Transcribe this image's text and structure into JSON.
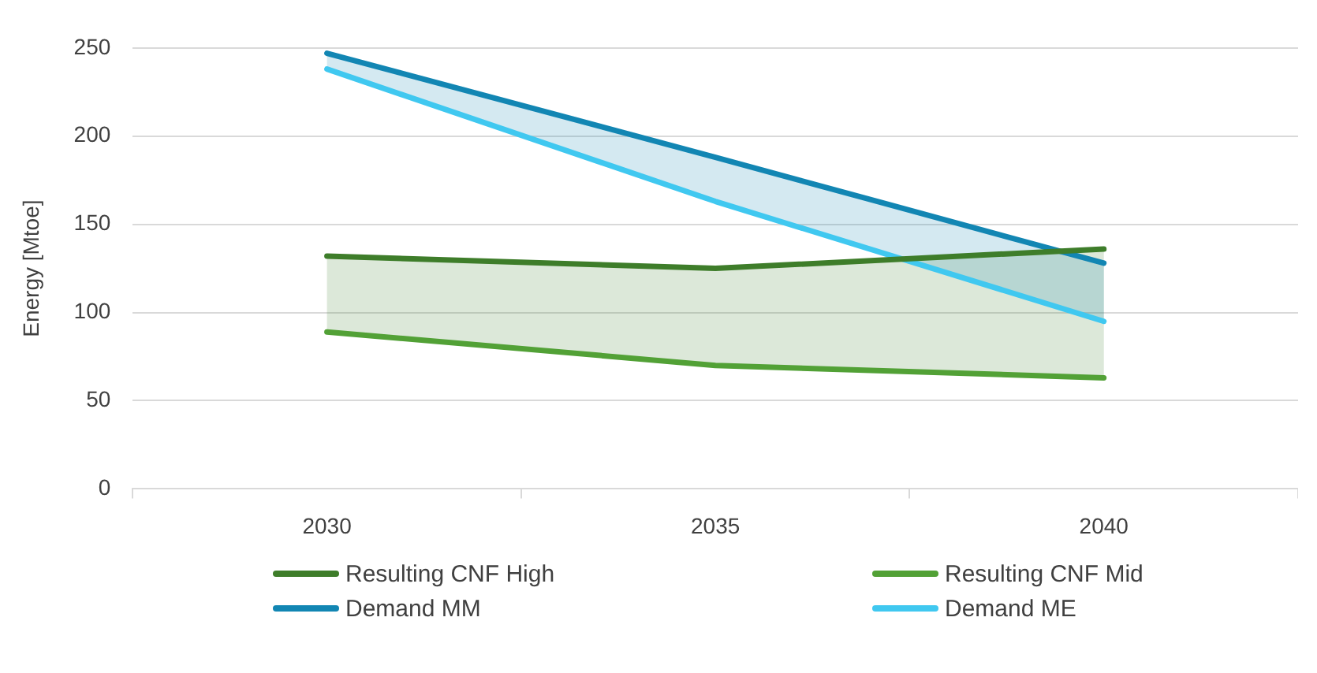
{
  "chart_data": {
    "type": "line",
    "ylabel": "Energy [Mtoe]",
    "categories": [
      "2030",
      "2035",
      "2040"
    ],
    "series": [
      {
        "name": "Resulting CNF High",
        "color": "#3e7d2a",
        "values": [
          132,
          125,
          136
        ],
        "lower": [
          89,
          70,
          63
        ],
        "upper": [
          132,
          125,
          136
        ]
      },
      {
        "name": "Resulting CNF Mid",
        "color": "#52a136",
        "values": [
          89,
          70,
          63
        ]
      },
      {
        "name": "Demand MM",
        "color": "#1286b3",
        "values": [
          247,
          188,
          128
        ],
        "lower": [
          238,
          163,
          95
        ],
        "upper": [
          247,
          188,
          128
        ]
      },
      {
        "name": "Demand ME",
        "color": "#40c8f0",
        "values": [
          238,
          163,
          95
        ]
      }
    ],
    "ylim": [
      0,
      250
    ],
    "yticks": [
      0,
      50,
      100,
      150,
      200,
      250
    ],
    "grid": "y",
    "legend": "bottom",
    "marker": "none",
    "line_style": "solid"
  }
}
